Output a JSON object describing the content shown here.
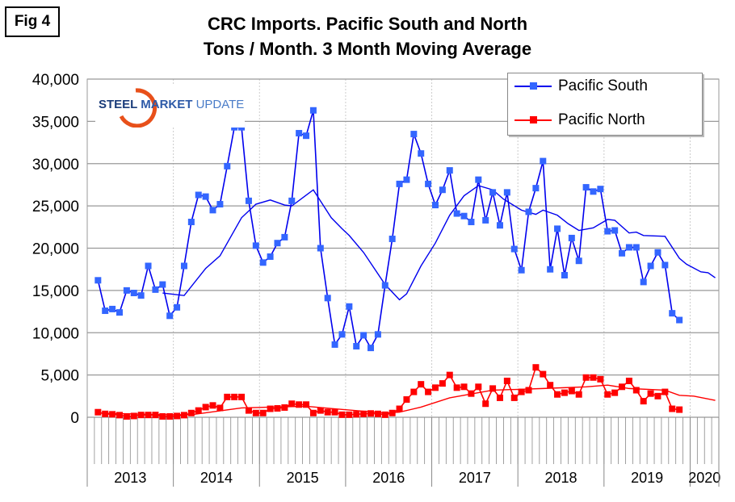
{
  "figure_label": "Fig 4",
  "logo_text": "STEEL MARKET UPDATE",
  "chart_data": {
    "type": "line",
    "title": [
      "CRC Imports. Pacific South and North",
      "Tons / Month. 3 Month Moving Average"
    ],
    "xlabel": "",
    "ylabel": "",
    "ylim": [
      0,
      40000
    ],
    "yticks": [
      "0",
      "5,000",
      "10,000",
      "15,000",
      "20,000",
      "25,000",
      "30,000",
      "35,000",
      "40,000"
    ],
    "ytick_values": [
      0,
      5000,
      10000,
      15000,
      20000,
      25000,
      30000,
      35000,
      40000
    ],
    "x_categories": "monthly, Jan 2013 to Apr 2020 (index 0 = Jan 2013)",
    "n_categories": 88,
    "year_labels": [
      "2013",
      "2014",
      "2015",
      "2016",
      "2017",
      "2018",
      "2019",
      "2020"
    ],
    "grid": true,
    "legend_position": "top-right",
    "series": [
      {
        "name": "Pacific South",
        "color": "#0000ee",
        "marker_color": "#3366ff",
        "start_index": 1,
        "values": [
          16200,
          12600,
          12800,
          12400,
          15000,
          14700,
          14400,
          17900,
          15100,
          15700,
          12000,
          13000,
          17900,
          23100,
          26300,
          26100,
          24500,
          25200,
          29700,
          34300,
          34300,
          25600,
          20300,
          18300,
          19000,
          20600,
          21300,
          25600,
          33600,
          33300,
          36300,
          20000,
          14100,
          8600,
          9800,
          13100,
          8400,
          9700,
          8200,
          9800,
          15600,
          21100,
          27600,
          28100,
          33500,
          31200,
          27600,
          25100,
          26900,
          29200,
          24100,
          23800,
          23100,
          28100,
          23300,
          26600,
          22700,
          26600,
          19900,
          17400,
          24300,
          27100,
          30300,
          17500,
          22300,
          16800,
          21200,
          18500,
          27200,
          26700,
          27000,
          22000,
          22100,
          19400,
          20100,
          20100,
          16000,
          17900,
          19500,
          18000,
          12300,
          11500
        ],
        "trend": [
          [
            10,
            14700
          ],
          [
            13,
            14400
          ],
          [
            16,
            17600
          ],
          [
            18,
            19100
          ],
          [
            21,
            23600
          ],
          [
            23,
            25200
          ],
          [
            25,
            25700
          ],
          [
            27,
            25100
          ],
          [
            28,
            25000
          ],
          [
            31,
            26900
          ],
          [
            33.5,
            23600
          ],
          [
            35,
            22300
          ],
          [
            36,
            21500
          ],
          [
            38,
            19500
          ],
          [
            41,
            15700
          ],
          [
            43,
            13900
          ],
          [
            44,
            14600
          ],
          [
            46,
            17900
          ],
          [
            48,
            20600
          ],
          [
            50,
            23900
          ],
          [
            52,
            26200
          ],
          [
            54,
            27400
          ],
          [
            56,
            26900
          ],
          [
            57.5,
            25800
          ],
          [
            60,
            24500
          ],
          [
            62,
            24000
          ],
          [
            63,
            24500
          ],
          [
            65,
            23900
          ],
          [
            66.5,
            22900
          ],
          [
            68,
            22100
          ],
          [
            70,
            22400
          ],
          [
            72,
            23400
          ],
          [
            73,
            23300
          ],
          [
            75,
            21800
          ],
          [
            76,
            21900
          ],
          [
            77,
            21500
          ],
          [
            80,
            21400
          ],
          [
            82,
            18800
          ],
          [
            83,
            18100
          ],
          [
            85,
            17200
          ],
          [
            86,
            17100
          ],
          [
            87,
            16500
          ]
        ]
      },
      {
        "name": "Pacific North",
        "color": "#ff0000",
        "marker_color": "#ff0000",
        "start_index": 1,
        "values": [
          600,
          400,
          350,
          250,
          100,
          150,
          270,
          270,
          270,
          100,
          100,
          150,
          250,
          500,
          800,
          1200,
          1400,
          1100,
          2400,
          2400,
          2400,
          800,
          500,
          500,
          1000,
          1050,
          1150,
          1600,
          1500,
          1500,
          500,
          800,
          600,
          600,
          300,
          300,
          350,
          400,
          450,
          400,
          300,
          500,
          1000,
          2100,
          3000,
          3900,
          3000,
          3500,
          4000,
          5000,
          3500,
          3600,
          2800,
          3600,
          1600,
          3400,
          2300,
          4300,
          2300,
          3000,
          3200,
          5900,
          5100,
          3800,
          2700,
          2900,
          3100,
          2700,
          4700,
          4700,
          4500,
          2700,
          2900,
          3600,
          4300,
          3200,
          1900,
          2800,
          2500,
          3000,
          1000,
          900
        ],
        "trend": [
          [
            1,
            500
          ],
          [
            10,
            300
          ],
          [
            14,
            300
          ],
          [
            21,
            1100
          ],
          [
            25,
            1200
          ],
          [
            30,
            1300
          ],
          [
            34,
            1000
          ],
          [
            41,
            500
          ],
          [
            43,
            600
          ],
          [
            46,
            1200
          ],
          [
            50,
            2300
          ],
          [
            54,
            2900
          ],
          [
            56,
            3200
          ],
          [
            63,
            3400
          ],
          [
            69,
            3600
          ],
          [
            72,
            3800
          ],
          [
            75,
            3400
          ],
          [
            80,
            3200
          ],
          [
            82,
            2600
          ],
          [
            84,
            2500
          ],
          [
            87,
            2000
          ]
        ]
      }
    ]
  }
}
